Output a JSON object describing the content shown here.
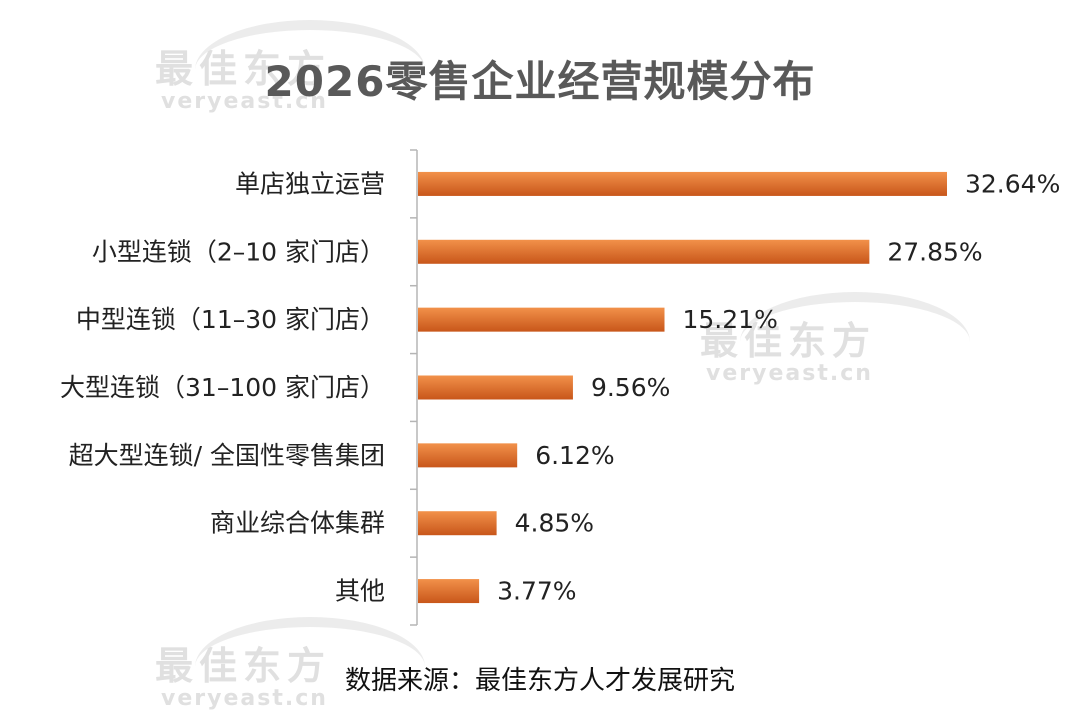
{
  "watermark": {
    "cn": "最佳东方",
    "en": "veryeast.cn"
  },
  "source": "数据来源：最佳东方人才发展研究",
  "colors": {
    "bar_dark": "#c8561a",
    "bar_light": "#f2914a",
    "axis": "#b5b5b5",
    "text": "#222222"
  },
  "chart_data": {
    "type": "bar",
    "orientation": "horizontal",
    "title": "2026零售企业经营规模分布",
    "categories": [
      "单店独立运营",
      "小型连锁（2–10 家门店）",
      "中型连锁（11–30 家门店）",
      "大型连锁（31–100 家门店）",
      "超大型连锁/ 全国性零售集团",
      "商业综合体集群",
      "其他"
    ],
    "values": [
      32.64,
      27.85,
      15.21,
      9.56,
      6.12,
      4.85,
      3.77
    ],
    "value_labels": [
      "32.64%",
      "27.85%",
      "15.21%",
      "9.56%",
      "6.12%",
      "4.85%",
      "3.77%"
    ],
    "unit": "%",
    "grid": false,
    "legend": "none"
  }
}
